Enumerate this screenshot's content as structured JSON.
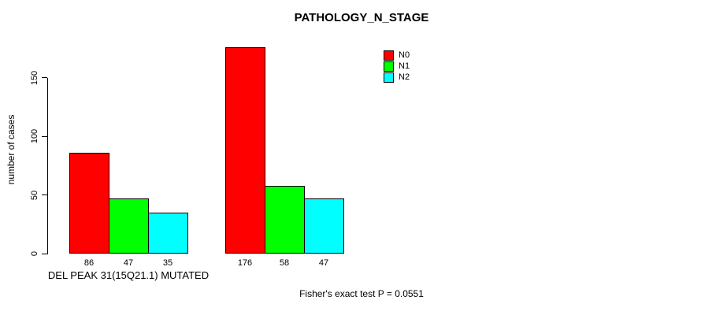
{
  "title": "PATHOLOGY_N_STAGE",
  "y_axis": {
    "label": "number of cases",
    "ticks": [
      0,
      50,
      100,
      150
    ]
  },
  "legend": {
    "items": [
      {
        "label": "N0",
        "color": "#ff0000"
      },
      {
        "label": "N1",
        "color": "#00ff00"
      },
      {
        "label": "N2",
        "color": "#00ffff"
      }
    ]
  },
  "footer": "Fisher's exact test P = 0.0551",
  "chart_data": {
    "type": "bar",
    "title": "PATHOLOGY_N_STAGE",
    "xlabel": "",
    "ylabel": "number of cases",
    "ylim": [
      0,
      180
    ],
    "yticks": [
      0,
      50,
      100,
      150
    ],
    "grid": false,
    "legend_position": "top-right",
    "series_names": [
      "N0",
      "N1",
      "N2"
    ],
    "series_colors": [
      "#ff0000",
      "#00ff00",
      "#00ffff"
    ],
    "groups": [
      {
        "label": "DEL PEAK 31(15Q21.1) MUTATED",
        "values": [
          86,
          47,
          35
        ]
      },
      {
        "label": "",
        "values": [
          176,
          58,
          47
        ]
      }
    ],
    "annotation": "Fisher's exact test P = 0.0551"
  }
}
